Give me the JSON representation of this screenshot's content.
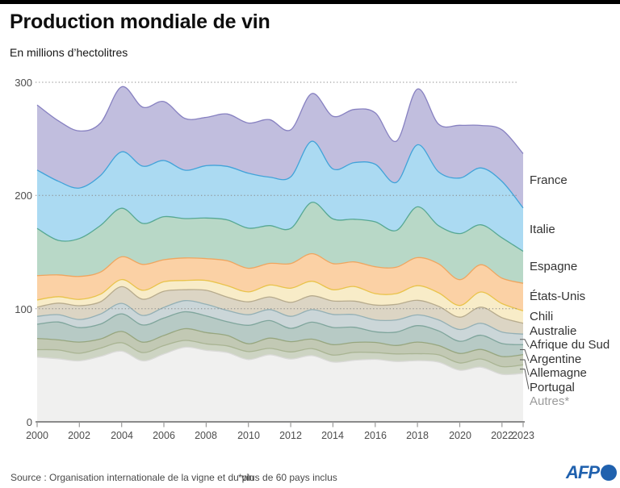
{
  "header": {
    "title": "Production mondiale de vin",
    "subtitle": "En millions d’hectolitres"
  },
  "footer": {
    "source": "Source : Organisation internationale de la vigne et du vin",
    "footnote": "*plus de 60 pays inclus",
    "logo_text": "AFP"
  },
  "colors": {
    "afp_blue": "#2061ae",
    "axis_line": "#4a4a4a",
    "grid_dots": "#8a8a8a",
    "tick_marks": "#9a9a9a",
    "leader_line": "#5a5a5a"
  },
  "chart_data": {
    "type": "area",
    "stacked": true,
    "title": "Production mondiale de vin",
    "ylabel": "En millions d’hectolitres",
    "xlabel": "",
    "ylim": [
      0,
      300
    ],
    "y_ticks": [
      0,
      100,
      200,
      300
    ],
    "grid": "horizontal dotted",
    "legend_position": "right",
    "x": [
      2000,
      2001,
      2002,
      2003,
      2004,
      2005,
      2006,
      2007,
      2008,
      2009,
      2010,
      2011,
      2012,
      2013,
      2014,
      2015,
      2016,
      2017,
      2018,
      2019,
      2020,
      2021,
      2022,
      2023
    ],
    "x_tick_years": [
      2000,
      2002,
      2004,
      2006,
      2008,
      2010,
      2012,
      2014,
      2016,
      2018,
      2020,
      2022,
      2023
    ],
    "series": [
      {
        "name": "France",
        "fill": "#c1bede",
        "line": "#8781c1",
        "label_color": "#333333",
        "values": [
          57.5,
          53.4,
          50.4,
          46.4,
          57.4,
          52.1,
          52.1,
          45.7,
          42.7,
          46.3,
          44.4,
          50.8,
          41.5,
          42.1,
          46.5,
          47.0,
          45.4,
          36.4,
          49.2,
          42.2,
          46.6,
          37.6,
          45.6,
          48.0
        ]
      },
      {
        "name": "Italie",
        "fill": "#abdaf2",
        "line": "#41a3d9",
        "label_color": "#333333",
        "values": [
          51.6,
          52.3,
          44.6,
          44.1,
          49.9,
          50.6,
          49.6,
          42.7,
          46.2,
          47.3,
          48.5,
          42.8,
          45.6,
          54.0,
          44.2,
          50.0,
          50.9,
          42.5,
          54.8,
          47.5,
          49.1,
          50.2,
          49.8,
          38.3
        ]
      },
      {
        "name": "Espagne",
        "fill": "#b8d8c7",
        "line": "#56a893",
        "label_color": "#333333",
        "values": [
          41.7,
          30.5,
          33.5,
          41.2,
          42.9,
          36.2,
          38.1,
          34.8,
          35.9,
          36.1,
          35.4,
          33.4,
          31.1,
          45.3,
          39.5,
          37.7,
          39.7,
          32.5,
          44.9,
          33.7,
          40.7,
          35.3,
          35.7,
          28.3
        ]
      },
      {
        "name": "États-Unis",
        "fill": "#fbd1a5",
        "line": "#efa55f",
        "label_color": "#333333",
        "values": [
          21.5,
          19.2,
          20.3,
          19.5,
          20.1,
          22.9,
          19.4,
          19.9,
          19.3,
          22.0,
          20.9,
          19.1,
          21.7,
          24.4,
          23.1,
          21.7,
          23.7,
          23.3,
          24.8,
          25.6,
          22.8,
          24.1,
          22.4,
          24.3
        ]
      },
      {
        "name": "Chili",
        "fill": "#f8ecc8",
        "line": "#e9c34b",
        "label_color": "#333333",
        "values": [
          6.4,
          5.7,
          5.6,
          6.7,
          6.3,
          7.9,
          8.4,
          8.2,
          8.7,
          10.1,
          8.8,
          10.5,
          12.6,
          12.8,
          9.9,
          12.9,
          10.1,
          9.5,
          12.9,
          11.9,
          10.3,
          13.4,
          12.4,
          11.0
        ]
      },
      {
        "name": "Australie",
        "fill": "#dcd5c4",
        "line": "#b7ab8d",
        "label_color": "#333333",
        "values": [
          8.1,
          10.2,
          12.2,
          10.8,
          14.7,
          14.3,
          14.3,
          9.6,
          12.4,
          11.8,
          11.4,
          11.2,
          12.3,
          12.3,
          11.9,
          11.9,
          13.1,
          13.7,
          12.9,
          12.0,
          10.9,
          14.2,
          12.7,
          9.6
        ]
      },
      {
        "name": "Afrique du Sud",
        "fill": "#cbd6d8",
        "line": "#94b0b5",
        "label_color": "#333333",
        "values": [
          7.0,
          6.5,
          7.2,
          8.9,
          9.3,
          8.4,
          9.4,
          9.8,
          10.2,
          10.0,
          9.3,
          9.7,
          10.6,
          11.0,
          11.5,
          11.2,
          10.5,
          10.8,
          9.5,
          9.7,
          10.4,
          10.6,
          10.2,
          9.3
        ]
      },
      {
        "name": "Argentine",
        "fill": "#b7cac5",
        "line": "#7fa59c",
        "label_color": "#333333",
        "values": [
          12.5,
          15.8,
          12.7,
          13.2,
          15.5,
          15.2,
          15.4,
          15.0,
          14.7,
          12.1,
          16.3,
          15.5,
          11.8,
          15.0,
          15.2,
          13.4,
          9.4,
          11.8,
          14.5,
          13.0,
          10.8,
          12.5,
          11.5,
          8.8
        ]
      },
      {
        "name": "Allemagne",
        "fill": "#c2c9b4",
        "line": "#97a67f",
        "label_color": "#333333",
        "values": [
          9.9,
          8.9,
          9.9,
          8.1,
          10.0,
          9.2,
          8.9,
          10.3,
          10.0,
          9.2,
          6.9,
          9.1,
          9.0,
          8.4,
          9.2,
          8.8,
          9.0,
          7.5,
          10.3,
          8.2,
          8.4,
          8.4,
          8.9,
          9.0
        ]
      },
      {
        "name": "Portugal",
        "fill": "#cdd4c3",
        "line": "#a9b493",
        "label_color": "#333333",
        "values": [
          6.7,
          7.8,
          6.7,
          7.3,
          7.5,
          7.3,
          7.5,
          6.1,
          5.7,
          5.9,
          7.1,
          5.6,
          6.3,
          6.2,
          6.2,
          7.0,
          6.0,
          6.7,
          6.1,
          6.5,
          6.4,
          7.3,
          6.8,
          7.5
        ]
      },
      {
        "name": "Autres*",
        "fill": "#f0f0ef",
        "line": "#dadad8",
        "label_color": "#9b9b9b",
        "values": [
          57.1,
          55.7,
          53.9,
          57.8,
          62.4,
          53.9,
          59.9,
          65.9,
          63.2,
          61.2,
          55.0,
          59.3,
          55.5,
          58.5,
          52.8,
          54.4,
          55.2,
          53.3,
          54.1,
          52.7,
          45.6,
          48.3,
          42.0,
          42.9
        ]
      }
    ]
  }
}
